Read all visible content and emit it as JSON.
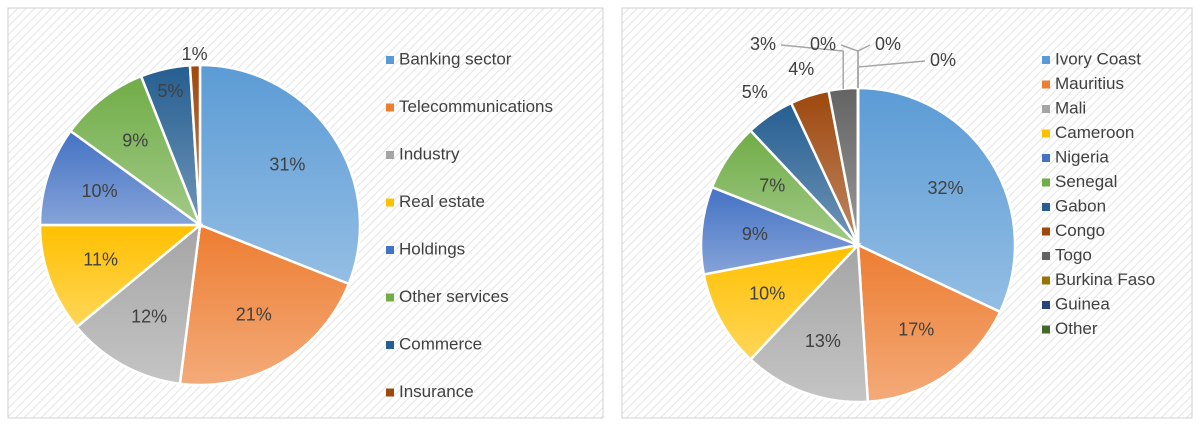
{
  "chart_data": [
    {
      "type": "pie",
      "categories": [
        "Banking sector",
        "Telecommunications",
        "Industry",
        "Real estate",
        "Holdings",
        "Other services",
        "Commerce",
        "Insurance"
      ],
      "values": [
        31,
        21,
        12,
        11,
        10,
        9,
        5,
        1
      ],
      "value_labels": [
        "31%",
        "21%",
        "12%",
        "11%",
        "10%",
        "9%",
        "5%",
        "1%"
      ],
      "colors": [
        "#5b9bd5",
        "#ed7d31",
        "#a5a5a5",
        "#ffc000",
        "#4472c4",
        "#70ad47",
        "#255e91",
        "#9e480e"
      ],
      "legend": "right"
    },
    {
      "type": "pie",
      "categories": [
        "Ivory Coast",
        "Mauritius",
        "Mali",
        "Cameroon",
        "Nigeria",
        "Senegal",
        "Gabon",
        "Congo",
        "Togo",
        "Burkina Faso",
        "Guinea",
        "Other"
      ],
      "values": [
        32,
        17,
        13,
        10,
        9,
        7,
        5,
        4,
        3,
        0,
        0,
        0
      ],
      "value_labels": [
        "32%",
        "17%",
        "13%",
        "10%",
        "9%",
        "7%",
        "5%",
        "4%",
        "3%",
        "0%",
        "0%",
        "0%"
      ],
      "colors": [
        "#5b9bd5",
        "#ed7d31",
        "#a5a5a5",
        "#ffc000",
        "#4472c4",
        "#70ad47",
        "#255e91",
        "#9e480e",
        "#636363",
        "#997300",
        "#264478",
        "#43682b"
      ],
      "legend": "right"
    }
  ]
}
